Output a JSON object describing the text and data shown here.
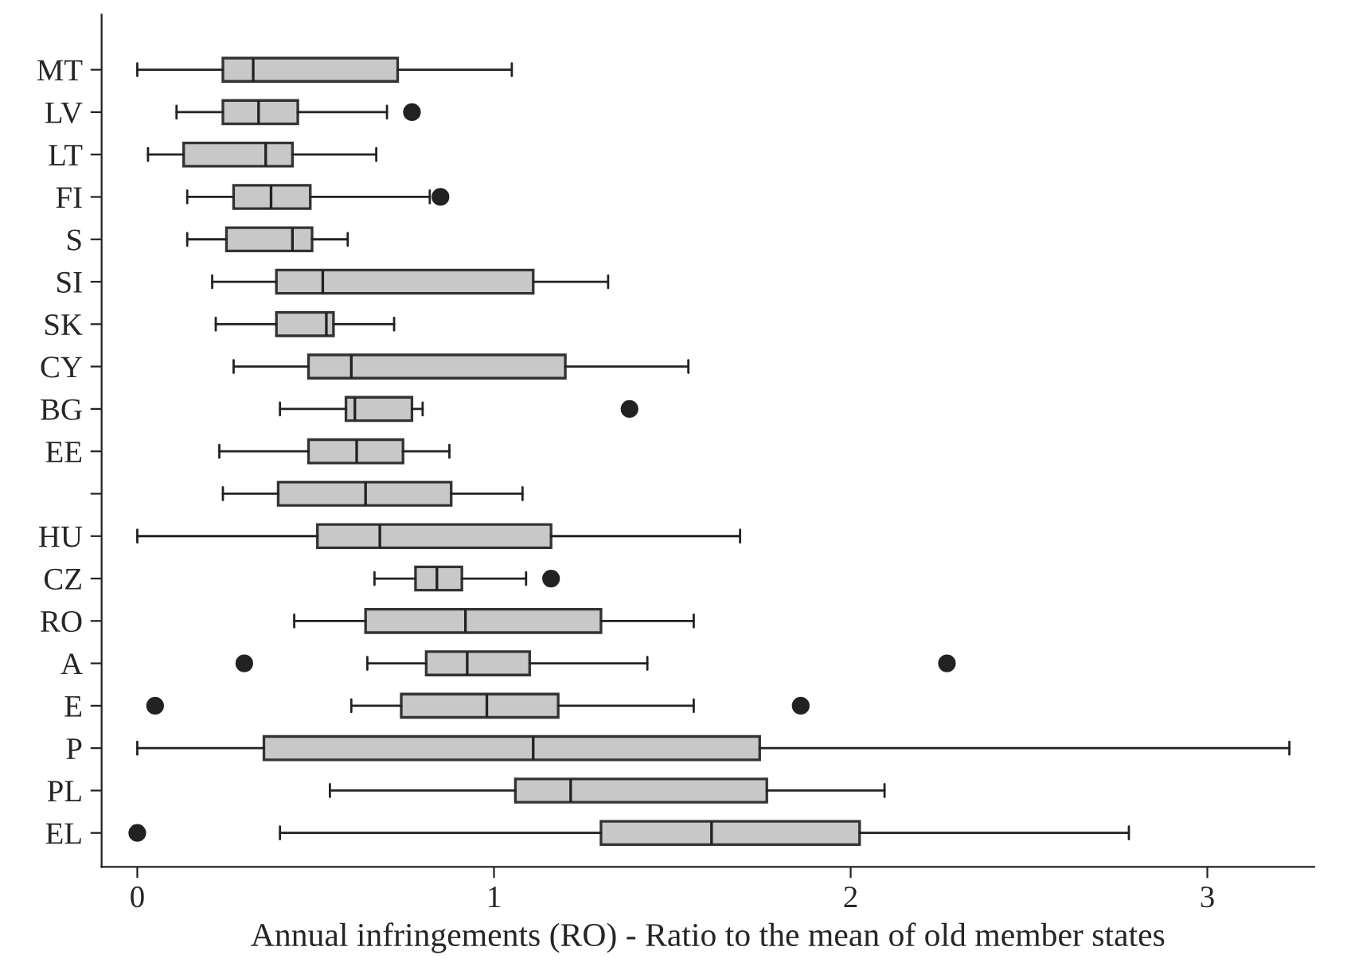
{
  "chart_data": {
    "type": "box",
    "orientation": "horizontal",
    "xlabel": "Annual infringements (RO) - Ratio to the mean of old member states",
    "categories": [
      "MT",
      "LV",
      "LT",
      "FI",
      "S",
      "SI",
      "SK",
      "CY",
      "BG",
      "EE",
      null,
      "HU",
      "CZ",
      "RO",
      "A",
      "E",
      "P",
      "PL",
      "EL"
    ],
    "color": "#c8c8c8",
    "boxes": [
      {
        "low": 0.0,
        "q1": 0.24,
        "median": 0.325,
        "q3": 0.73,
        "high": 1.05
      },
      {
        "low": 0.11,
        "q1": 0.24,
        "median": 0.34,
        "q3": 0.45,
        "high": 0.7,
        "outliers": [
          0.77
        ]
      },
      {
        "low": 0.03,
        "q1": 0.13,
        "median": 0.36,
        "q3": 0.435,
        "high": 0.67
      },
      {
        "low": 0.14,
        "q1": 0.27,
        "median": 0.375,
        "q3": 0.485,
        "high": 0.82,
        "outliers": [
          0.85
        ]
      },
      {
        "low": 0.14,
        "q1": 0.25,
        "median": 0.435,
        "q3": 0.49,
        "high": 0.59
      },
      {
        "low": 0.21,
        "q1": 0.39,
        "median": 0.52,
        "q3": 1.11,
        "high": 1.32
      },
      {
        "low": 0.22,
        "q1": 0.39,
        "median": 0.53,
        "q3": 0.55,
        "high": 0.72
      },
      {
        "low": 0.27,
        "q1": 0.48,
        "median": 0.6,
        "q3": 1.2,
        "high": 1.545
      },
      {
        "low": 0.4,
        "q1": 0.585,
        "median": 0.61,
        "q3": 0.77,
        "high": 0.8,
        "outliers": [
          1.38
        ]
      },
      {
        "low": 0.23,
        "q1": 0.48,
        "median": 0.615,
        "q3": 0.745,
        "high": 0.875
      },
      {
        "low": 0.24,
        "q1": 0.395,
        "median": 0.64,
        "q3": 0.88,
        "high": 1.08
      },
      {
        "low": 0.0,
        "q1": 0.505,
        "median": 0.68,
        "q3": 1.16,
        "high": 1.69
      },
      {
        "low": 0.665,
        "q1": 0.78,
        "median": 0.84,
        "q3": 0.91,
        "high": 1.09,
        "outliers": [
          1.16
        ]
      },
      {
        "low": 0.44,
        "q1": 0.64,
        "median": 0.92,
        "q3": 1.3,
        "high": 1.56
      },
      {
        "low": 0.645,
        "q1": 0.81,
        "median": 0.925,
        "q3": 1.1,
        "high": 1.43,
        "outliers": [
          0.3,
          2.27
        ]
      },
      {
        "low": 0.6,
        "q1": 0.74,
        "median": 0.98,
        "q3": 1.18,
        "high": 1.56,
        "outliers": [
          0.05,
          1.86
        ]
      },
      {
        "low": 0.0,
        "q1": 0.355,
        "median": 1.11,
        "q3": 1.745,
        "high": 3.23
      },
      {
        "low": 0.54,
        "q1": 1.06,
        "median": 1.215,
        "q3": 1.765,
        "high": 2.095
      },
      {
        "low": 0.4,
        "q1": 1.3,
        "median": 1.61,
        "q3": 2.025,
        "high": 2.78,
        "outliers": [
          0.0
        ]
      }
    ],
    "xlim": [
      -0.1,
      3.3
    ],
    "xticks": [
      0,
      1,
      2,
      3
    ],
    "grid": false,
    "legend": false
  }
}
